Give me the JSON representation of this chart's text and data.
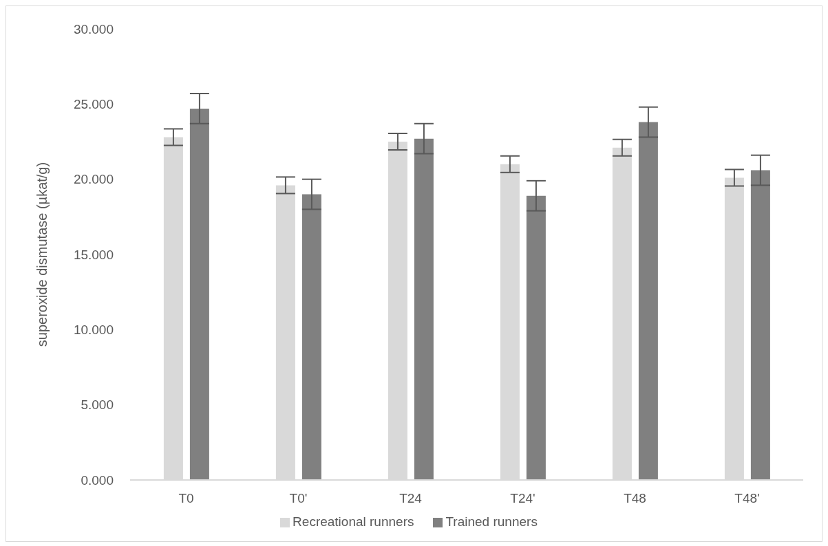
{
  "chart_data": {
    "type": "bar",
    "ylabel": "superoxide dismutase (µkat/g)",
    "categories": [
      "T0",
      "T0'",
      "T24",
      "T24'",
      "T48",
      "T48'"
    ],
    "series": [
      {
        "name": "Recreational runners",
        "color": "#d9d9d9",
        "values": [
          22.8,
          19.6,
          22.5,
          21.0,
          22.1,
          20.1
        ],
        "errors": [
          0.55,
          0.55,
          0.55,
          0.55,
          0.55,
          0.55
        ]
      },
      {
        "name": "Trained runners",
        "color": "#808080",
        "values": [
          24.7,
          19.0,
          22.7,
          18.9,
          23.8,
          20.6
        ],
        "errors": [
          1.0,
          1.0,
          1.0,
          1.0,
          1.0,
          1.0
        ]
      }
    ],
    "ylim": [
      0,
      30
    ],
    "yticks": [
      {
        "value": 0,
        "label": "0.000"
      },
      {
        "value": 5,
        "label": "5.000"
      },
      {
        "value": 10,
        "label": "10.000"
      },
      {
        "value": 15,
        "label": "15.000"
      },
      {
        "value": 20,
        "label": "20.000"
      },
      {
        "value": 25,
        "label": "25.000"
      },
      {
        "value": 30,
        "label": "30.000"
      }
    ],
    "grid": false,
    "legend": "bottom"
  }
}
